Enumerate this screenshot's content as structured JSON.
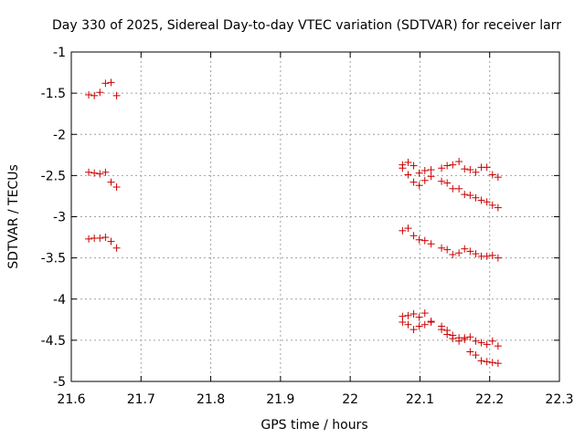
{
  "chart_data": {
    "type": "scatter",
    "title": "Day 330 of 2025, Sidereal Day-to-day VTEC variation (SDTVAR) for receiver larr",
    "xlabel": "GPS time / hours",
    "ylabel": "SDTVAR / TECUs",
    "xlim": [
      21.6,
      22.3
    ],
    "ylim": [
      -5,
      -1
    ],
    "xticks": [
      21.6,
      21.7,
      21.8,
      21.9,
      22.0,
      22.1,
      22.2,
      22.3
    ],
    "xtick_labels": [
      "21.6",
      "21.7",
      "21.8",
      "21.9",
      "22",
      "22.1",
      "22.2",
      "22.3"
    ],
    "yticks": [
      -5,
      -4.5,
      -4,
      -3.5,
      -3,
      -2.5,
      -2,
      -1.5,
      -1
    ],
    "ytick_labels": [
      "-5",
      "-4.5",
      "-4",
      "-3.5",
      "-3",
      "-2.5",
      "-2",
      "-1.5",
      "-1"
    ],
    "grid": true,
    "marker": "+",
    "marker_color": "#cc0000",
    "points": [
      [
        21.625,
        -1.52
      ],
      [
        21.633,
        -1.53
      ],
      [
        21.641,
        -1.49
      ],
      [
        21.649,
        -1.38
      ],
      [
        21.657,
        -1.37
      ],
      [
        21.665,
        -1.53
      ],
      [
        21.625,
        -2.46
      ],
      [
        21.633,
        -2.47
      ],
      [
        21.641,
        -2.48
      ],
      [
        21.649,
        -2.46
      ],
      [
        21.657,
        -2.58
      ],
      [
        21.665,
        -2.64
      ],
      [
        21.625,
        -3.27
      ],
      [
        21.633,
        -3.26
      ],
      [
        21.641,
        -3.26
      ],
      [
        21.649,
        -3.25
      ],
      [
        21.657,
        -3.3
      ],
      [
        21.665,
        -3.38
      ],
      [
        22.075,
        -2.41
      ],
      [
        22.083,
        -2.34
      ],
      [
        22.091,
        -2.38
      ],
      [
        22.099,
        -2.47
      ],
      [
        22.107,
        -2.44
      ],
      [
        22.116,
        -2.43
      ],
      [
        22.131,
        -2.41
      ],
      [
        22.139,
        -2.38
      ],
      [
        22.147,
        -2.37
      ],
      [
        22.156,
        -2.33
      ],
      [
        22.164,
        -2.42
      ],
      [
        22.172,
        -2.43
      ],
      [
        22.18,
        -2.46
      ],
      [
        22.188,
        -2.4
      ],
      [
        22.196,
        -2.4
      ],
      [
        22.204,
        -2.49
      ],
      [
        22.212,
        -2.52
      ],
      [
        22.075,
        -2.37
      ],
      [
        22.083,
        -2.49
      ],
      [
        22.091,
        -2.58
      ],
      [
        22.099,
        -2.62
      ],
      [
        22.107,
        -2.56
      ],
      [
        22.116,
        -2.51
      ],
      [
        22.131,
        -2.57
      ],
      [
        22.139,
        -2.59
      ],
      [
        22.147,
        -2.66
      ],
      [
        22.156,
        -2.66
      ],
      [
        22.164,
        -2.73
      ],
      [
        22.172,
        -2.74
      ],
      [
        22.18,
        -2.77
      ],
      [
        22.188,
        -2.8
      ],
      [
        22.196,
        -2.82
      ],
      [
        22.204,
        -2.86
      ],
      [
        22.212,
        -2.89
      ],
      [
        22.075,
        -3.17
      ],
      [
        22.083,
        -3.14
      ],
      [
        22.091,
        -3.23
      ],
      [
        22.099,
        -3.28
      ],
      [
        22.107,
        -3.29
      ],
      [
        22.116,
        -3.33
      ],
      [
        22.131,
        -3.38
      ],
      [
        22.139,
        -3.4
      ],
      [
        22.147,
        -3.46
      ],
      [
        22.156,
        -3.44
      ],
      [
        22.164,
        -3.39
      ],
      [
        22.172,
        -3.42
      ],
      [
        22.18,
        -3.45
      ],
      [
        22.188,
        -3.48
      ],
      [
        22.196,
        -3.48
      ],
      [
        22.204,
        -3.47
      ],
      [
        22.212,
        -3.5
      ],
      [
        22.075,
        -4.21
      ],
      [
        22.083,
        -4.2
      ],
      [
        22.091,
        -4.18
      ],
      [
        22.099,
        -4.22
      ],
      [
        22.107,
        -4.17
      ],
      [
        22.116,
        -4.27
      ],
      [
        22.131,
        -4.33
      ],
      [
        22.139,
        -4.38
      ],
      [
        22.147,
        -4.44
      ],
      [
        22.156,
        -4.47
      ],
      [
        22.164,
        -4.47
      ],
      [
        22.172,
        -4.46
      ],
      [
        22.18,
        -4.51
      ],
      [
        22.188,
        -4.53
      ],
      [
        22.196,
        -4.55
      ],
      [
        22.204,
        -4.51
      ],
      [
        22.212,
        -4.57
      ],
      [
        22.075,
        -4.28
      ],
      [
        22.083,
        -4.31
      ],
      [
        22.091,
        -4.37
      ],
      [
        22.099,
        -4.33
      ],
      [
        22.107,
        -4.31
      ],
      [
        22.116,
        -4.28
      ],
      [
        22.131,
        -4.37
      ],
      [
        22.139,
        -4.43
      ],
      [
        22.147,
        -4.48
      ],
      [
        22.156,
        -4.51
      ],
      [
        22.164,
        -4.49
      ],
      [
        22.172,
        -4.64
      ],
      [
        22.18,
        -4.68
      ],
      [
        22.188,
        -4.75
      ],
      [
        22.196,
        -4.76
      ],
      [
        22.204,
        -4.77
      ],
      [
        22.212,
        -4.78
      ]
    ]
  }
}
